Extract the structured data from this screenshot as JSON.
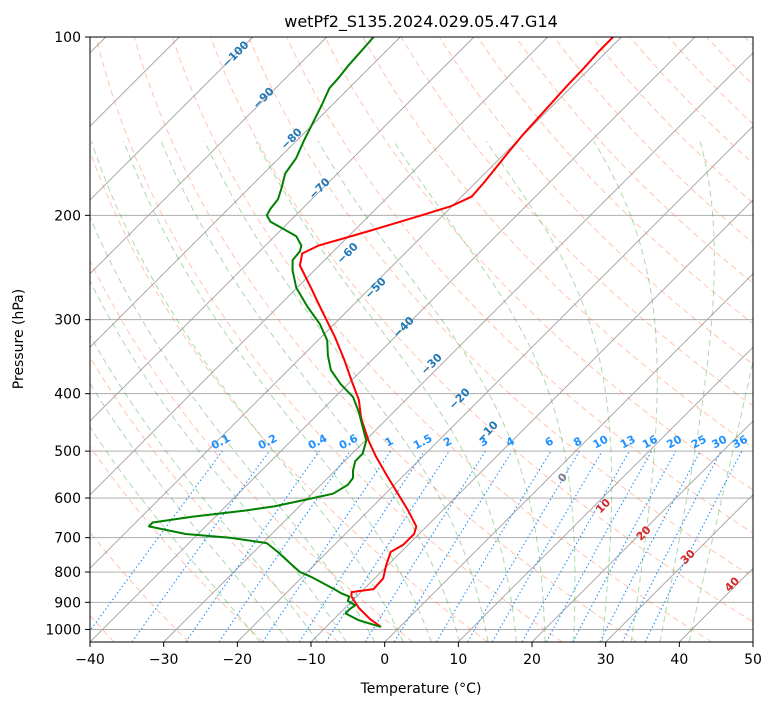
{
  "chart_data": {
    "type": "line",
    "title": "wetPf2_S135.2024.029.05.47.G14",
    "xlabel": "Temperature (°C)",
    "ylabel": "Pressure (hPa)",
    "xlim": [
      -40,
      50
    ],
    "ylim": [
      1050,
      100
    ],
    "y_scale": "log",
    "grid": true,
    "x_ticks": [
      "−40",
      "−30",
      "−20",
      "−10",
      "0",
      "10",
      "20",
      "30",
      "40",
      "50"
    ],
    "y_ticks": [
      {
        "p": 100,
        "label": "100"
      },
      {
        "p": 200,
        "label": "200"
      },
      {
        "p": 300,
        "label": "300"
      },
      {
        "p": 400,
        "label": "400"
      },
      {
        "p": 500,
        "label": "500"
      },
      {
        "p": 600,
        "label": "600"
      },
      {
        "p": 700,
        "label": "700"
      },
      {
        "p": 800,
        "label": "800"
      },
      {
        "p": 900,
        "label": "900"
      },
      {
        "p": 1000,
        "label": "1000"
      }
    ],
    "series": [
      {
        "color": "#ff0000",
        "points": [
          [
            -0.5,
            990
          ],
          [
            -2,
            960
          ],
          [
            -3.5,
            920
          ],
          [
            -4.5,
            880
          ],
          [
            -4.5,
            865
          ],
          [
            -1.5,
            855
          ],
          [
            -0.2,
            820
          ],
          [
            0.2,
            780
          ],
          [
            0.8,
            740
          ],
          [
            2.5,
            720
          ],
          [
            4.0,
            690
          ],
          [
            4.3,
            670
          ],
          [
            3.2,
            630
          ],
          [
            1.8,
            590
          ],
          [
            0.3,
            550
          ],
          [
            -1.2,
            510
          ],
          [
            -2.2,
            480
          ],
          [
            -3.2,
            440
          ],
          [
            -3.5,
            410
          ],
          [
            -4.5,
            380
          ],
          [
            -5.5,
            350
          ],
          [
            -6.8,
            320
          ],
          [
            -8.5,
            290
          ],
          [
            -10.0,
            265
          ],
          [
            -11.5,
            243
          ],
          [
            -11.2,
            232
          ],
          [
            -9.0,
            225
          ],
          [
            -3.5,
            215
          ],
          [
            1.0,
            207
          ],
          [
            5.0,
            200
          ],
          [
            9.0,
            193
          ],
          [
            11.8,
            186
          ],
          [
            13.5,
            176
          ],
          [
            14.8,
            168
          ],
          [
            16.7,
            157
          ],
          [
            18.8,
            146
          ],
          [
            22.0,
            132
          ],
          [
            25.0,
            120
          ],
          [
            27.0,
            113
          ],
          [
            29.0,
            106
          ],
          [
            31.0,
            100
          ]
        ]
      },
      {
        "color": "#008000",
        "points": [
          [
            -0.5,
            990
          ],
          [
            -3.5,
            965
          ],
          [
            -5.3,
            940
          ],
          [
            -4.8,
            925
          ],
          [
            -4.0,
            910
          ],
          [
            -5.0,
            895
          ],
          [
            -4.8,
            880
          ],
          [
            -5.8,
            870
          ],
          [
            -6.5,
            860
          ],
          [
            -8.0,
            840
          ],
          [
            -10.0,
            815
          ],
          [
            -11.5,
            800
          ],
          [
            -12.5,
            780
          ],
          [
            -13.5,
            760
          ],
          [
            -14.5,
            740
          ],
          [
            -16.0,
            715
          ],
          [
            -21.0,
            700
          ],
          [
            -27.0,
            690
          ],
          [
            -32.0,
            670
          ],
          [
            -31.5,
            660
          ],
          [
            -26.0,
            645
          ],
          [
            -19.0,
            630
          ],
          [
            -15.0,
            620
          ],
          [
            -11.0,
            605
          ],
          [
            -7.0,
            590
          ],
          [
            -5.0,
            570
          ],
          [
            -4.3,
            555
          ],
          [
            -4.3,
            540
          ],
          [
            -4.0,
            520
          ],
          [
            -3.0,
            505
          ],
          [
            -2.5,
            480
          ],
          [
            -3.0,
            455
          ],
          [
            -3.5,
            430
          ],
          [
            -4.3,
            405
          ],
          [
            -6.0,
            385
          ],
          [
            -7.3,
            365
          ],
          [
            -7.7,
            345
          ],
          [
            -7.8,
            325
          ],
          [
            -8.8,
            305
          ],
          [
            -10.5,
            285
          ],
          [
            -12.0,
            265
          ],
          [
            -12.5,
            248
          ],
          [
            -12.5,
            238
          ],
          [
            -11.5,
            230
          ],
          [
            -11.3,
            225
          ],
          [
            -12.0,
            217
          ],
          [
            -14.0,
            210
          ],
          [
            -15.5,
            205
          ],
          [
            -16.0,
            200
          ],
          [
            -15.5,
            195
          ],
          [
            -14.5,
            188
          ],
          [
            -14.0,
            180
          ],
          [
            -13.5,
            170
          ],
          [
            -12.0,
            160
          ],
          [
            -11.0,
            150
          ],
          [
            -9.8,
            140
          ],
          [
            -8.5,
            130
          ],
          [
            -7.5,
            122
          ],
          [
            -6.2,
            117
          ],
          [
            -5.0,
            112
          ],
          [
            -3.0,
            105
          ],
          [
            -1.5,
            100
          ]
        ]
      }
    ],
    "dry_adiabat_labels": [
      "−100",
      "−90",
      "−80",
      "−70",
      "−60",
      "−50",
      "−40",
      "−30",
      "−20",
      "−10"
    ],
    "moist_adiabat_labels": [
      "0",
      "10",
      "20",
      "30",
      "40"
    ],
    "mixing_ratio_labels": [
      "0.1",
      "0.2",
      "0.4",
      "0.6",
      "1",
      "1.5",
      "2",
      "3",
      "4",
      "6",
      "8",
      "10",
      "13",
      "16",
      "20",
      "25",
      "30",
      "36"
    ],
    "colors": {
      "temperature": "#ff0000",
      "dewpoint": "#008000",
      "isotherm": "#a0a0a0",
      "dry_adiabat": "#ff7f50",
      "moist_adiabat": "#2ca02c",
      "mixing_ratio": "#1e90ff",
      "dry_label": "#1f77b4",
      "moist_label": "#d62728",
      "zero_label": "#7f7f7f"
    }
  }
}
